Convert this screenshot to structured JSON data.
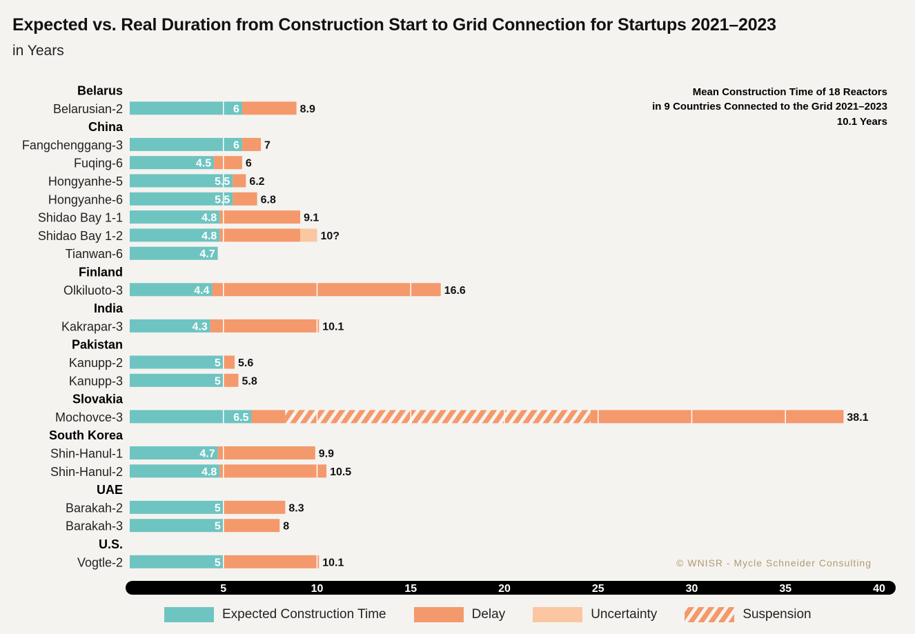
{
  "chart_data": {
    "type": "bar",
    "orientation": "horizontal",
    "stacked": true,
    "title": "Expected vs. Real Duration from Construction Start to Grid Connection for Startups 2021–2023",
    "subtitle": "in Years",
    "xlim": [
      0,
      40
    ],
    "x_ticks": [
      5,
      10,
      15,
      20,
      25,
      30,
      35,
      40
    ],
    "groups": [
      {
        "country": "Belarus",
        "reactors": [
          {
            "name": "Belarusian-2",
            "expected": 6,
            "total": 8.9,
            "label": "8.9"
          }
        ]
      },
      {
        "country": "China",
        "reactors": [
          {
            "name": "Fangchenggang-3",
            "expected": 6,
            "total": 7,
            "label": "7"
          },
          {
            "name": "Fuqing-6",
            "expected": 4.5,
            "total": 6,
            "label": "6"
          },
          {
            "name": "Hongyanhe-5",
            "expected": 5.5,
            "total": 6.2,
            "label": "6.2"
          },
          {
            "name": "Hongyanhe-6",
            "expected": 5.5,
            "total": 6.8,
            "label": "6.8"
          },
          {
            "name": "Shidao Bay 1-1",
            "expected": 4.8,
            "total": 9.1,
            "label": "9.1"
          },
          {
            "name": "Shidao Bay 1-2",
            "expected": 4.8,
            "total": 9.1,
            "uncertain_to": 10,
            "label": "10?"
          },
          {
            "name": "Tianwan-6",
            "expected": 4.7,
            "total": 4.7,
            "label": ""
          }
        ]
      },
      {
        "country": "Finland",
        "reactors": [
          {
            "name": "Olkiluoto-3",
            "expected": 4.4,
            "total": 16.6,
            "label": "16.6"
          }
        ]
      },
      {
        "country": "India",
        "reactors": [
          {
            "name": "Kakrapar-3",
            "expected": 4.3,
            "total": 10.1,
            "label": "10.1"
          }
        ]
      },
      {
        "country": "Pakistan",
        "reactors": [
          {
            "name": "Kanupp-2",
            "expected": 5,
            "total": 5.6,
            "label": "5.6"
          },
          {
            "name": "Kanupp-3",
            "expected": 5,
            "total": 5.8,
            "label": "5.8"
          }
        ]
      },
      {
        "country": "Slovakia",
        "reactors": [
          {
            "name": "Mochovce-3",
            "expected": 6.5,
            "total": 38.1,
            "suspension": [
              8.3,
              24.6
            ],
            "label": "38.1"
          }
        ]
      },
      {
        "country": "South Korea",
        "reactors": [
          {
            "name": "Shin-Hanul-1",
            "expected": 4.7,
            "total": 9.9,
            "label": "9.9"
          },
          {
            "name": "Shin-Hanul-2",
            "expected": 4.8,
            "total": 10.5,
            "label": "10.5"
          }
        ]
      },
      {
        "country": "UAE",
        "reactors": [
          {
            "name": "Barakah-2",
            "expected": 5,
            "total": 8.3,
            "label": "8.3"
          },
          {
            "name": "Barakah-3",
            "expected": 5,
            "total": 8,
            "label": "8"
          }
        ]
      },
      {
        "country": "U.S.",
        "reactors": [
          {
            "name": "Vogtle-2",
            "expected": 5,
            "total": 10.1,
            "label": "10.1"
          }
        ]
      }
    ],
    "annotation": {
      "line1": "Mean Construction Time of 18 Reactors",
      "line2": "in 9 Countries Connected to the Grid 2021–2023",
      "line3": "10.1 Years"
    },
    "credit": "© WNISR - Mycle Schneider Consulting",
    "legend": [
      {
        "key": "expected",
        "label": "Expected Construction Time"
      },
      {
        "key": "delay",
        "label": "Delay"
      },
      {
        "key": "uncertainty",
        "label": "Uncertainty"
      },
      {
        "key": "suspension",
        "label": "Suspension"
      }
    ],
    "colors": {
      "expected": "#6ec4c1",
      "delay": "#f4996b",
      "uncertainty": "#fbc6a2",
      "axis": "#000000",
      "background": "#f5f3f0",
      "credit": "#b09a70"
    }
  }
}
